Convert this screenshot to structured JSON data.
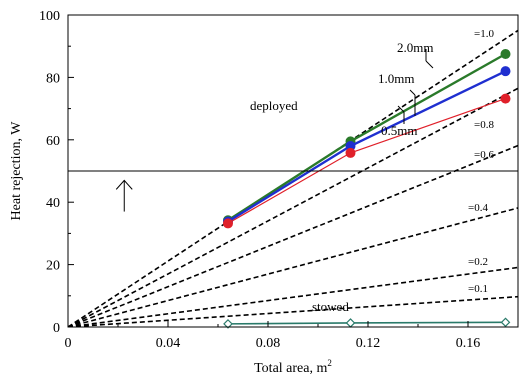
{
  "chart_data": {
    "type": "line",
    "xlabel": "Total area, m",
    "xlabel_superscript": "2",
    "ylabel": "Heat rejection, W",
    "xlim": [
      0,
      0.18
    ],
    "ylim": [
      0,
      100
    ],
    "xticks": [
      0,
      0.04,
      0.08,
      0.12,
      0.16
    ],
    "xtick_labels": [
      "0",
      "0.04",
      "0.08",
      "0.12",
      "0.16"
    ],
    "yticks": [
      0,
      20,
      40,
      60,
      80,
      100
    ],
    "ytick_labels": [
      "0",
      "20",
      "40",
      "60",
      "80",
      "100"
    ],
    "grid": false,
    "threshold_line": {
      "y": 50
    },
    "arrow": {
      "x": 0.0225,
      "y_from": 37,
      "y_to": 47
    },
    "dashed_lines": [
      {
        "label": "=1.0",
        "slope": 528
      },
      {
        "label": "=0.8",
        "slope": 425
      },
      {
        "label": "=0.6",
        "slope": 323
      },
      {
        "label": "=0.4",
        "slope": 212
      },
      {
        "label": "=0.2",
        "slope": 106
      },
      {
        "label": "=0.1",
        "slope": 54
      }
    ],
    "series": [
      {
        "color": "#2a7a2a",
        "marker": "circle",
        "x": [
          0.064,
          0.113,
          0.175
        ],
        "values": [
          34.2,
          59.5,
          87.5
        ]
      },
      {
        "color": "#1f2fd0",
        "marker": "circle",
        "x": [
          0.064,
          0.113,
          0.175
        ],
        "values": [
          33.8,
          58.0,
          82.0
        ]
      },
      {
        "color": "#e0202a",
        "marker": "circle",
        "x": [
          0.064,
          0.113,
          0.175
        ],
        "values": [
          33.2,
          55.8,
          73.2
        ]
      },
      {
        "color": "#2a7a6a",
        "marker": "diamond",
        "x": [
          0.064,
          0.113,
          0.175
        ],
        "values": [
          1.0,
          1.3,
          1.5
        ]
      }
    ],
    "annotations": {
      "mm20": "2.0mm",
      "mm10": "1.0mm",
      "mm05": "0.5mm",
      "deployed": "deployed",
      "stowed": "stowed"
    }
  }
}
